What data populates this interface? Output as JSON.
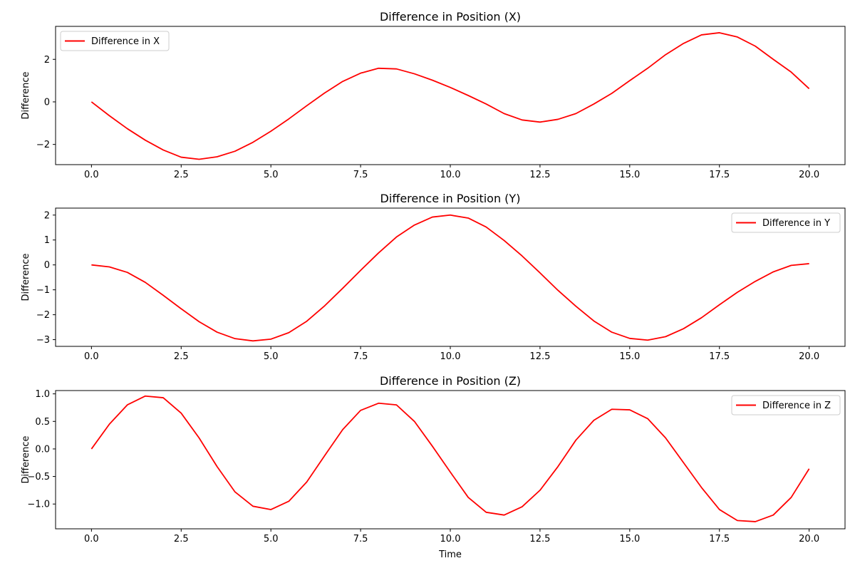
{
  "figure": {
    "background": "#ffffff",
    "line_color": "#ff0000"
  },
  "chart_data": [
    {
      "type": "line",
      "title": "Difference in Position (X)",
      "xlabel": "",
      "ylabel": "Difference",
      "xlim": [
        -1.0,
        21.0
      ],
      "ylim": [
        -2.95,
        3.55
      ],
      "xticks": [
        0.0,
        2.5,
        5.0,
        7.5,
        10.0,
        12.5,
        15.0,
        17.5,
        20.0
      ],
      "xtick_labels": [
        "0.0",
        "2.5",
        "5.0",
        "7.5",
        "10.0",
        "12.5",
        "15.0",
        "17.5",
        "20.0"
      ],
      "yticks": [
        -2,
        0,
        2
      ],
      "ytick_labels": [
        "−2",
        "0",
        "2"
      ],
      "grid": false,
      "legend": {
        "position": "top-left",
        "entries": [
          "Difference in X"
        ]
      },
      "series": [
        {
          "name": "Difference in X",
          "color": "#ff0000",
          "x": [
            0.0,
            0.5,
            1.0,
            1.5,
            2.0,
            2.5,
            3.0,
            3.5,
            4.0,
            4.5,
            5.0,
            5.5,
            6.0,
            6.5,
            7.0,
            7.5,
            8.0,
            8.5,
            9.0,
            9.5,
            10.0,
            10.5,
            11.0,
            11.5,
            12.0,
            12.5,
            13.0,
            13.5,
            14.0,
            14.5,
            15.0,
            15.5,
            16.0,
            16.5,
            17.0,
            17.5,
            18.0,
            18.5,
            19.0,
            19.5,
            20.0
          ],
          "y": [
            0.0,
            -0.65,
            -1.26,
            -1.8,
            -2.26,
            -2.6,
            -2.7,
            -2.58,
            -2.32,
            -1.9,
            -1.38,
            -0.8,
            -0.18,
            0.42,
            0.96,
            1.35,
            1.58,
            1.55,
            1.32,
            1.02,
            0.68,
            0.3,
            -0.1,
            -0.55,
            -0.85,
            -0.95,
            -0.82,
            -0.55,
            -0.1,
            0.4,
            1.0,
            1.58,
            2.22,
            2.75,
            3.15,
            3.25,
            3.05,
            2.62,
            2.0,
            1.4,
            0.62
          ]
        }
      ]
    },
    {
      "type": "line",
      "title": "Difference in Position (Y)",
      "xlabel": "",
      "ylabel": "Difference",
      "xlim": [
        -1.0,
        21.0
      ],
      "ylim": [
        -3.27,
        2.28
      ],
      "xticks": [
        0.0,
        2.5,
        5.0,
        7.5,
        10.0,
        12.5,
        15.0,
        17.5,
        20.0
      ],
      "xtick_labels": [
        "0.0",
        "2.5",
        "5.0",
        "7.5",
        "10.0",
        "12.5",
        "15.0",
        "17.5",
        "20.0"
      ],
      "yticks": [
        -3,
        -2,
        -1,
        0,
        1,
        2
      ],
      "ytick_labels": [
        "−3",
        "−2",
        "−1",
        "0",
        "1",
        "2"
      ],
      "grid": false,
      "legend": {
        "position": "top-right",
        "entries": [
          "Difference in Y"
        ]
      },
      "series": [
        {
          "name": "Difference in Y",
          "color": "#ff0000",
          "x": [
            0.0,
            0.5,
            1.0,
            1.5,
            2.0,
            2.5,
            3.0,
            3.5,
            4.0,
            4.5,
            5.0,
            5.5,
            6.0,
            6.5,
            7.0,
            7.5,
            8.0,
            8.5,
            9.0,
            9.5,
            10.0,
            10.5,
            11.0,
            11.5,
            12.0,
            12.5,
            13.0,
            13.5,
            14.0,
            14.5,
            15.0,
            15.5,
            16.0,
            16.5,
            17.0,
            17.5,
            18.0,
            18.5,
            19.0,
            19.5,
            20.0
          ],
          "y": [
            0.0,
            -0.08,
            -0.3,
            -0.7,
            -1.22,
            -1.76,
            -2.28,
            -2.7,
            -2.96,
            -3.05,
            -2.98,
            -2.72,
            -2.26,
            -1.64,
            -0.94,
            -0.22,
            0.48,
            1.12,
            1.6,
            1.92,
            2.0,
            1.88,
            1.52,
            0.98,
            0.36,
            -0.32,
            -1.02,
            -1.66,
            -2.25,
            -2.7,
            -2.95,
            -3.02,
            -2.88,
            -2.56,
            -2.12,
            -1.6,
            -1.1,
            -0.66,
            -0.28,
            -0.02,
            0.05
          ]
        }
      ]
    },
    {
      "type": "line",
      "title": "Difference in Position (Z)",
      "xlabel": "Time",
      "ylabel": "Difference",
      "xlim": [
        -1.0,
        21.0
      ],
      "ylim": [
        -1.45,
        1.06
      ],
      "xticks": [
        0.0,
        2.5,
        5.0,
        7.5,
        10.0,
        12.5,
        15.0,
        17.5,
        20.0
      ],
      "xtick_labels": [
        "0.0",
        "2.5",
        "5.0",
        "7.5",
        "10.0",
        "12.5",
        "15.0",
        "17.5",
        "20.0"
      ],
      "yticks": [
        -1.0,
        -0.5,
        0.0,
        0.5,
        1.0
      ],
      "ytick_labels": [
        "−1.0",
        "−0.5",
        "0.0",
        "0.5",
        "1.0"
      ],
      "grid": false,
      "legend": {
        "position": "top-right",
        "entries": [
          "Difference in Z"
        ]
      },
      "series": [
        {
          "name": "Difference in Z",
          "color": "#ff0000",
          "x": [
            0.0,
            0.5,
            1.0,
            1.5,
            2.0,
            2.5,
            3.0,
            3.5,
            4.0,
            4.5,
            5.0,
            5.5,
            6.0,
            6.5,
            7.0,
            7.5,
            8.0,
            8.5,
            9.0,
            9.5,
            10.0,
            10.5,
            11.0,
            11.5,
            12.0,
            12.5,
            13.0,
            13.5,
            14.0,
            14.5,
            15.0,
            15.5,
            16.0,
            16.5,
            17.0,
            17.5,
            18.0,
            18.5,
            19.0,
            19.5,
            20.0
          ],
          "y": [
            0.0,
            0.45,
            0.8,
            0.96,
            0.93,
            0.65,
            0.2,
            -0.32,
            -0.78,
            -1.04,
            -1.1,
            -0.95,
            -0.6,
            -0.12,
            0.35,
            0.7,
            0.83,
            0.8,
            0.5,
            0.05,
            -0.42,
            -0.88,
            -1.15,
            -1.2,
            -1.05,
            -0.75,
            -0.32,
            0.16,
            0.52,
            0.72,
            0.71,
            0.55,
            0.2,
            -0.25,
            -0.7,
            -1.1,
            -1.3,
            -1.32,
            -1.2,
            -0.88,
            -0.36
          ]
        }
      ]
    }
  ]
}
